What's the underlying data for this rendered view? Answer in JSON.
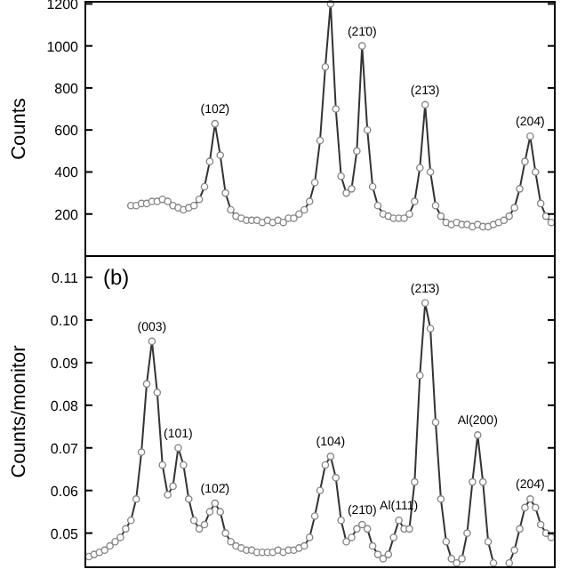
{
  "chart_data": [
    {
      "type": "line",
      "ylabel": "Counts",
      "categories": [
        null,
        null,
        null,
        null,
        null,
        null,
        null,
        null,
        null,
        null,
        null,
        null,
        null,
        null,
        null,
        null,
        null,
        null,
        null,
        null,
        null,
        null,
        null,
        null,
        null,
        null,
        null,
        null,
        null,
        null,
        null,
        null,
        null,
        null,
        null,
        null,
        null,
        null,
        null,
        null,
        null,
        null,
        null,
        null,
        null,
        null,
        null,
        null,
        null,
        null,
        null,
        null,
        null,
        null,
        null,
        null,
        null,
        null,
        null,
        null,
        null,
        null,
        null,
        null,
        null,
        null,
        null,
        null,
        null,
        null,
        null,
        null,
        null,
        null,
        null,
        null,
        null,
        null,
        null,
        null,
        null,
        null,
        null,
        null,
        null,
        null,
        null,
        null,
        null
      ],
      "series": [
        {
          "color": "#333333",
          "values": [
            null,
            null,
            null,
            null,
            null,
            null,
            null,
            null,
            240,
            240,
            250,
            250,
            260,
            260,
            270,
            260,
            240,
            230,
            220,
            230,
            240,
            270,
            330,
            450,
            630,
            480,
            300,
            220,
            190,
            180,
            170,
            170,
            170,
            160,
            170,
            160,
            170,
            160,
            180,
            180,
            200,
            220,
            260,
            350,
            550,
            900,
            1200,
            700,
            380,
            300,
            320,
            500,
            1000,
            600,
            330,
            240,
            200,
            190,
            180,
            180,
            180,
            200,
            260,
            420,
            720,
            400,
            240,
            190,
            160,
            150,
            160,
            150,
            150,
            140,
            150,
            140,
            140,
            150,
            160,
            170,
            190,
            230,
            320,
            450,
            570,
            400,
            250,
            190,
            160
          ]
        }
      ],
      "ylim": [
        0,
        1210
      ],
      "yticks": [
        200,
        400,
        600,
        800,
        1000,
        1200
      ],
      "tick_labels": "y",
      "marker": "circle",
      "annotations": [
        {
          "text": "(102̄)",
          "y": 630
        },
        {
          "text": "(21̄0)",
          "y": 1000
        },
        {
          "text": "(21̄3)",
          "y": 720
        },
        {
          "text": "(204̄)",
          "y": 570
        }
      ]
    },
    {
      "type": "line",
      "ylabel": "Counts/monitor",
      "categories": [
        null,
        null,
        null,
        null,
        null,
        null,
        null,
        null,
        null,
        null,
        null,
        null,
        null,
        null,
        null,
        null,
        null,
        null,
        null,
        null,
        null,
        null,
        null,
        null,
        null,
        null,
        null,
        null,
        null,
        null,
        null,
        null,
        null,
        null,
        null,
        null,
        null,
        null,
        null,
        null,
        null,
        null,
        null,
        null,
        null,
        null,
        null,
        null,
        null,
        null,
        null,
        null,
        null,
        null,
        null,
        null,
        null,
        null,
        null,
        null,
        null,
        null,
        null,
        null,
        null,
        null,
        null,
        null,
        null,
        null,
        null,
        null,
        null,
        null,
        null,
        null,
        null,
        null,
        null,
        null,
        null,
        null,
        null,
        null,
        null,
        null,
        null,
        null,
        null
      ],
      "series": [
        {
          "color": "#333333",
          "values": [
            0.0445,
            0.045,
            0.0455,
            0.046,
            0.047,
            0.048,
            0.049,
            0.051,
            0.053,
            0.058,
            0.069,
            0.085,
            0.095,
            0.083,
            0.066,
            0.059,
            0.061,
            0.07,
            0.066,
            0.058,
            0.053,
            0.051,
            0.052,
            0.055,
            0.057,
            0.055,
            0.05,
            0.048,
            0.047,
            0.0465,
            0.046,
            0.046,
            0.0455,
            0.0455,
            0.0455,
            0.0455,
            0.046,
            0.0455,
            0.046,
            0.046,
            0.0465,
            0.047,
            0.049,
            0.054,
            0.06,
            0.066,
            0.068,
            0.063,
            0.053,
            0.048,
            0.049,
            0.051,
            0.052,
            0.051,
            0.047,
            0.045,
            0.044,
            0.045,
            0.049,
            0.053,
            0.051,
            0.051,
            0.062,
            0.087,
            0.104,
            0.098,
            0.076,
            0.058,
            0.048,
            0.044,
            0.043,
            0.044,
            0.05,
            0.062,
            0.073,
            0.062,
            0.048,
            0.043,
            null,
            null,
            0.043,
            0.046,
            0.051,
            0.056,
            0.058,
            0.056,
            0.052,
            0.05,
            0.049
          ]
        }
      ],
      "ylim": [
        0.042,
        0.115
      ],
      "yticks": [
        0.05,
        0.06,
        0.07,
        0.08,
        0.09,
        {
          "value": 0.1,
          "label": "0.10"
        },
        0.11
      ],
      "tick_labels": "y",
      "marker": "circle",
      "annotations": [
        "(b)",
        {
          "text": "(003)",
          "y": 0.095
        },
        {
          "text": "(101)",
          "y": 0.07
        },
        {
          "text": "(102̄)",
          "y": 0.057
        },
        {
          "text": "(104)",
          "y": 0.068
        },
        {
          "text": "(21̄0)",
          "y": 0.052
        },
        {
          "text": "Al(111)",
          "y": 0.053
        },
        {
          "text": "(21̄3)",
          "y": 0.104
        },
        {
          "text": "Al(200)",
          "y": 0.073
        },
        {
          "text": "(204̄)",
          "y": 0.058
        }
      ]
    }
  ]
}
